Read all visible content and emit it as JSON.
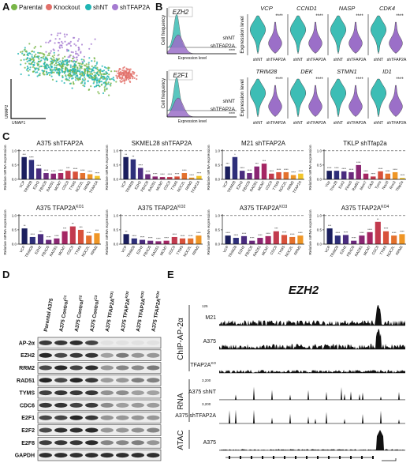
{
  "figure": {
    "A": {
      "label": "A",
      "xlabel": "UMAP1",
      "ylabel": "UMAP2",
      "legend": [
        {
          "name": "Parental",
          "color": "#79b648"
        },
        {
          "name": "Knockout",
          "color": "#e2706a"
        },
        {
          "name": "shNT",
          "color": "#20b5b4"
        },
        {
          "name": "shTFAP2A",
          "color": "#a57bd1"
        }
      ]
    },
    "B": {
      "label": "B",
      "groups": [
        "shNT",
        "shTFAP2A"
      ],
      "colors": [
        "#3dbdb5",
        "#9b6fc8"
      ],
      "density": {
        "ylabel": "Cell frequency",
        "xlabel": "Expression level",
        "plots": [
          {
            "gene": "EZH2",
            "stars": "****"
          },
          {
            "gene": "E2F1",
            "stars": "****"
          }
        ]
      },
      "violin": {
        "ylabel": "Expression level",
        "plots": [
          {
            "gene": "VCP",
            "stars": "****"
          },
          {
            "gene": "CCND1",
            "stars": "****"
          },
          {
            "gene": "NASP",
            "stars": "****"
          },
          {
            "gene": "CDK4",
            "stars": "****"
          },
          {
            "gene": "TRIM28",
            "stars": "****"
          },
          {
            "gene": "DEK",
            "stars": "****"
          },
          {
            "gene": "STMN1",
            "stars": "****"
          },
          {
            "gene": "ID1",
            "stars": "****"
          }
        ]
      }
    },
    "C": {
      "label": "C",
      "ylabel": "Relative mRNA expression",
      "ylim": [
        0,
        1.05
      ],
      "yticks": [
        {
          "value": 0,
          "label": "0.0"
        },
        {
          "value": 0.5,
          "label": "0.5"
        },
        {
          "value": 1,
          "label": "1.0"
        }
      ],
      "reference": 1,
      "colors": [
        "#1b1f5e",
        "#2e2f7a",
        "#4a2c7f",
        "#6b2a7d",
        "#8a2673",
        "#a52663",
        "#c23a4e",
        "#d8513b",
        "#e4712d",
        "#ef9626",
        "#f3c52a"
      ],
      "charts": [
        {
          "title": "A375 shTFAP2A",
          "categories": [
            "VCP",
            "TRIM28",
            "EZH2",
            "FBXO5",
            "RAD51",
            "MCM7",
            "CDC6",
            "TYMS",
            "NOC2L",
            "RRM2",
            "TFAP2A"
          ],
          "values": [
            0.78,
            0.68,
            0.38,
            0.22,
            0.2,
            0.22,
            0.3,
            0.27,
            0.22,
            0.18,
            0.12
          ],
          "stars": [
            "***",
            "****",
            "****",
            "****",
            "****",
            "****",
            "***",
            "****",
            "****",
            "****",
            "****"
          ]
        },
        {
          "title": "SKMEL28 shTFAP2A",
          "categories": [
            "VCP",
            "TRIM28",
            "EZH2",
            "FBXO5",
            "RAD51",
            "MCM7",
            "CDC6",
            "TYMS",
            "NOC2L",
            "RRM2",
            "TFAP2A"
          ],
          "values": [
            0.78,
            0.7,
            0.4,
            0.18,
            0.1,
            0.08,
            0.08,
            0.1,
            0.22,
            0.06,
            0.12
          ],
          "stars": [
            "**",
            "**",
            "****",
            "****",
            "****",
            "****",
            "****",
            "****",
            "****",
            "****",
            "****"
          ]
        },
        {
          "title": "M21 shTFAP2A",
          "categories": [
            "VCP",
            "TRIM28",
            "EZH2",
            "FBXO5",
            "RAD51",
            "MCM7",
            "CDC6",
            "TYMS",
            "NOC2L",
            "RRM2",
            "TFAP2A"
          ],
          "values": [
            0.45,
            0.78,
            0.3,
            0.22,
            0.45,
            0.55,
            0.2,
            0.25,
            0.25,
            0.15,
            0.2
          ],
          "stars": [
            "***",
            "*",
            "****",
            "****",
            "***",
            "***",
            "****",
            "****",
            "****",
            "****",
            "****"
          ]
        },
        {
          "title": "TKLP shTfap2a",
          "categories": [
            "Vcp",
            "Trim28",
            "Ezh2",
            "Fbxo5",
            "Rad51",
            "Mcm7",
            "Cdc6",
            "Tyms",
            "Noc2l",
            "Rrm2",
            "Tfap2a"
          ],
          "values": [
            0.3,
            0.3,
            0.28,
            0.25,
            0.5,
            0.2,
            0.1,
            0.28,
            0.2,
            0.25,
            0.05
          ],
          "stars": [
            "****",
            "****",
            "****",
            "****",
            "****",
            "****",
            "****",
            "****",
            "****",
            "****",
            "****"
          ]
        },
        {
          "title": "A375 TFAP2A",
          "title_sup": "KO1",
          "categories": [
            "VCP",
            "TRIM28",
            "EZH2",
            "FBXO5",
            "RAD51",
            "MCM7",
            "CDC6",
            "TYMS",
            "NOC2L",
            "RRM2"
          ],
          "values": [
            0.55,
            0.25,
            0.35,
            0.15,
            0.2,
            0.45,
            0.62,
            0.5,
            0.3,
            0.38
          ],
          "stars": [
            "**",
            "****",
            "***",
            "****",
            "****",
            "***",
            "**",
            "***",
            "****",
            "***"
          ]
        },
        {
          "title": "A375 TFAP2A",
          "title_sup": "KO2",
          "categories": [
            "VCP",
            "TRIM28",
            "EZH2",
            "FBXO5",
            "RAD51",
            "MCM7",
            "CDC6",
            "TYMS",
            "NOC2L",
            "RRM2"
          ],
          "values": [
            0.35,
            0.2,
            0.15,
            0.12,
            0.1,
            0.12,
            0.25,
            0.2,
            0.2,
            0.3
          ],
          "stars": [
            "**",
            "****",
            "****",
            "****",
            "****",
            "****",
            "****",
            "****",
            "****",
            "****"
          ]
        },
        {
          "title": "A375 TFAP2A",
          "title_sup": "KO3",
          "categories": [
            "VCP",
            "TRIM28",
            "EZH2",
            "FBXO5",
            "RAD51",
            "MCM7",
            "CDC6",
            "TYMS",
            "NOC2L",
            "RRM2"
          ],
          "values": [
            0.3,
            0.22,
            0.28,
            0.12,
            0.22,
            0.28,
            0.45,
            0.32,
            0.25,
            0.3
          ],
          "stars": [
            "****",
            "****",
            "****",
            "****",
            "****",
            "****",
            "***",
            "****",
            "****",
            "****"
          ]
        },
        {
          "title": "A375 TFAP2A",
          "title_sup": "KO4",
          "categories": [
            "VCP",
            "TRIM28",
            "EZH2",
            "FBXO5",
            "RAD51",
            "MCM7",
            "CDC6",
            "TYMS",
            "NOC2L",
            "RRM2"
          ],
          "values": [
            0.55,
            0.3,
            0.32,
            0.12,
            0.3,
            0.42,
            0.78,
            0.45,
            0.3,
            0.35
          ],
          "stars": [
            "***",
            "****",
            "****",
            "****",
            "****",
            "****",
            "**",
            "****",
            "****",
            "****"
          ]
        }
      ]
    },
    "D": {
      "label": "D",
      "samples": [
        {
          "name": "Parental A375"
        },
        {
          "name": "A375 Control",
          "sup": "C1"
        },
        {
          "name": "A375 Control",
          "sup": "C2"
        },
        {
          "name": "A375 Control",
          "sup": "C3"
        },
        {
          "name": "A375 TFAP2A",
          "sup": "KO1"
        },
        {
          "name": "A375 TFAP2A",
          "sup": "KO2"
        },
        {
          "name": "A375 TFAP2A",
          "sup": "KO3"
        },
        {
          "name": "A375 TFAP2A",
          "sup": "KO4"
        }
      ],
      "proteins": [
        "AP-2α",
        "EZH2",
        "RRM2",
        "RAD51",
        "TYMS",
        "CDC6",
        "E2F1",
        "E2F2",
        "E2F8",
        "GAPDH"
      ]
    },
    "E": {
      "label": "E",
      "title": "EZH2",
      "sections": [
        {
          "name": "ChIP-AP-2α",
          "tracks": [
            {
              "name": "M21",
              "scale": "125"
            },
            {
              "name": "A375"
            },
            {
              "name": "TFAP2A",
              "sup": "KO"
            }
          ]
        },
        {
          "name": "RNA",
          "tracks": [
            {
              "name": "A375 shNT",
              "scale": "3,200"
            },
            {
              "name": "A375 shTFAP2A",
              "scale": "3,200"
            }
          ]
        },
        {
          "name": "ATAC",
          "tracks": [
            {
              "name": "A375"
            }
          ]
        }
      ]
    }
  }
}
